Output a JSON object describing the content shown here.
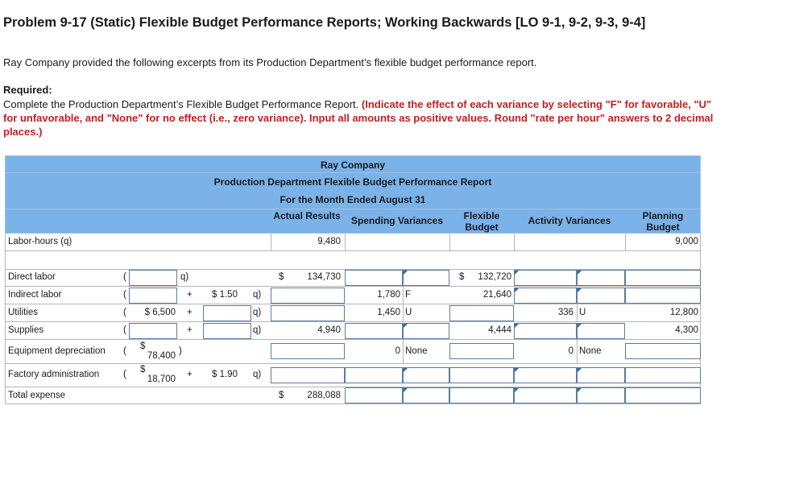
{
  "problem": {
    "title": "Problem 9-17 (Static) Flexible Budget Performance Reports; Working Backwards [LO 9-1, 9-2, 9-3, 9-4]",
    "intro": "Ray Company provided the following excerpts from its Production Department’s flexible budget performance report.",
    "required_label": "Required:",
    "required_text": "Complete the Production Department’s Flexible Budget Performance Report.",
    "required_instruction": "(Indicate the effect of each variance by selecting \"F\" for favorable, \"U\" for unfavorable, and \"None\" for no effect (i.e., zero variance). Input all amounts as positive values. Round \"rate per hour\" answers to 2 decimal places.)"
  },
  "report": {
    "company": "Ray Company",
    "title": "Production Department Flexible Budget Performance Report",
    "period": "For the Month Ended August 31",
    "columns": {
      "actual": "Actual Results",
      "spending": "Spending Variances",
      "flexible": "Flexible Budget",
      "activity": "Activity Variances",
      "planning": "Planning Budget"
    },
    "labor_hours": {
      "label": "Labor-hours (q)",
      "actual": "9,480",
      "planning": "9,000"
    },
    "rows": [
      {
        "label": "Direct labor",
        "fixed": "",
        "plus": "",
        "variable": "",
        "q": "q)",
        "actual": "$ 134,730",
        "spend_amt": "",
        "spend_eff": "",
        "flex": "$ 132,720",
        "act_amt": "",
        "act_eff": "",
        "plan": ""
      },
      {
        "label": "Indirect labor",
        "fixed": "",
        "plus": "+",
        "variable": "$ 1.50",
        "q": "q)",
        "actual": "",
        "spend_amt": "1,780",
        "spend_eff": "F",
        "flex": "21,640",
        "act_amt": "",
        "act_eff": "",
        "plan": ""
      },
      {
        "label": "Utilities",
        "fixed": "$ 6,500",
        "plus": "+",
        "variable": "",
        "q": "q)",
        "actual": "",
        "spend_amt": "1,450",
        "spend_eff": "U",
        "flex": "",
        "act_amt": "336",
        "act_eff": "U",
        "plan": "12,800"
      },
      {
        "label": "Supplies",
        "fixed": "",
        "plus": "+",
        "variable": "",
        "q": "q)",
        "actual": "4,940",
        "spend_amt": "",
        "spend_eff": "",
        "flex": "4,444",
        "act_amt": "",
        "act_eff": "",
        "plan": "4,300"
      },
      {
        "label": "Equipment depreciation",
        "fixed_dollar": "$",
        "fixed": "78,400",
        "plus": "",
        "variable": "",
        "q": "",
        "actual": "",
        "spend_amt": "0",
        "spend_eff": "None",
        "flex": "",
        "act_amt": "0",
        "act_eff": "None",
        "plan": ""
      },
      {
        "label": "Factory administration",
        "fixed_dollar": "$",
        "fixed": "18,700",
        "plus": "+",
        "variable": "$ 1.90",
        "q": "q)",
        "actual": "",
        "spend_amt": "",
        "spend_eff": "",
        "flex": "",
        "act_amt": "",
        "act_eff": "",
        "plan": ""
      },
      {
        "label": "Total expense",
        "fixed": "",
        "plus": "",
        "variable": "",
        "q": "",
        "actual": "$ 288,088",
        "spend_amt": "",
        "spend_eff": "",
        "flex": "",
        "act_amt": "",
        "act_eff": "",
        "plan": ""
      }
    ],
    "symbols": {
      "open_paren": "(",
      "close_paren": ")"
    }
  }
}
